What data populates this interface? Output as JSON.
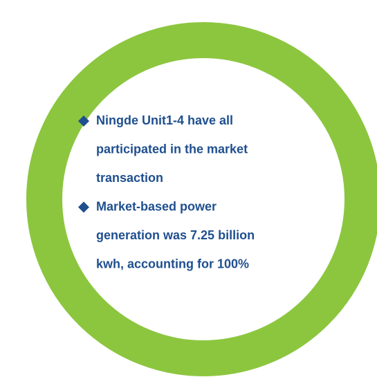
{
  "bullets": [
    {
      "lines": [
        "Ningde Unit1-4 have all",
        "participated in the market",
        "transaction"
      ]
    },
    {
      "lines": [
        "Market-based power",
        "generation was 7.25 billion",
        "kwh, accounting for 100%"
      ]
    }
  ]
}
